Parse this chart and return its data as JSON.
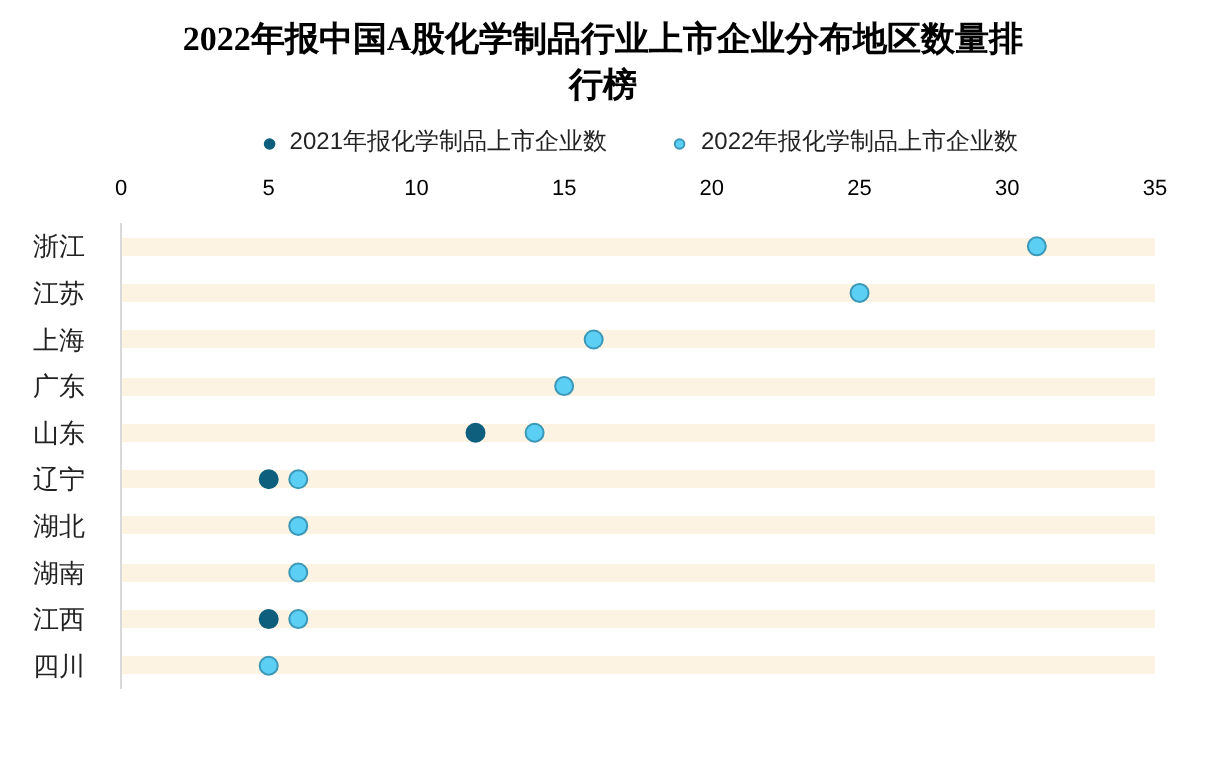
{
  "chart_data": {
    "type": "scatter",
    "orientation": "horizontal",
    "title": "2022年报中国A股化学制品行业上市企业分布地区数量排行榜",
    "categories": [
      "浙江",
      "江苏",
      "上海",
      "广东",
      "山东",
      "辽宁",
      "湖北",
      "湖南",
      "江西",
      "四川"
    ],
    "series": [
      {
        "name": "2021年报化学制品上市企业数",
        "color": "#0d5f7d",
        "values": [
          null,
          null,
          null,
          null,
          12,
          5,
          null,
          null,
          5,
          null
        ]
      },
      {
        "name": "2022年报化学制品上市企业数",
        "color": "#5ccff5",
        "values": [
          31,
          25,
          16,
          15,
          14,
          6,
          6,
          6,
          6,
          5
        ]
      }
    ],
    "xlim": [
      0,
      35
    ],
    "xticks": [
      0,
      5,
      10,
      15,
      20,
      25,
      30,
      35
    ],
    "grid": "y",
    "legend": "top",
    "marker": "circle"
  }
}
